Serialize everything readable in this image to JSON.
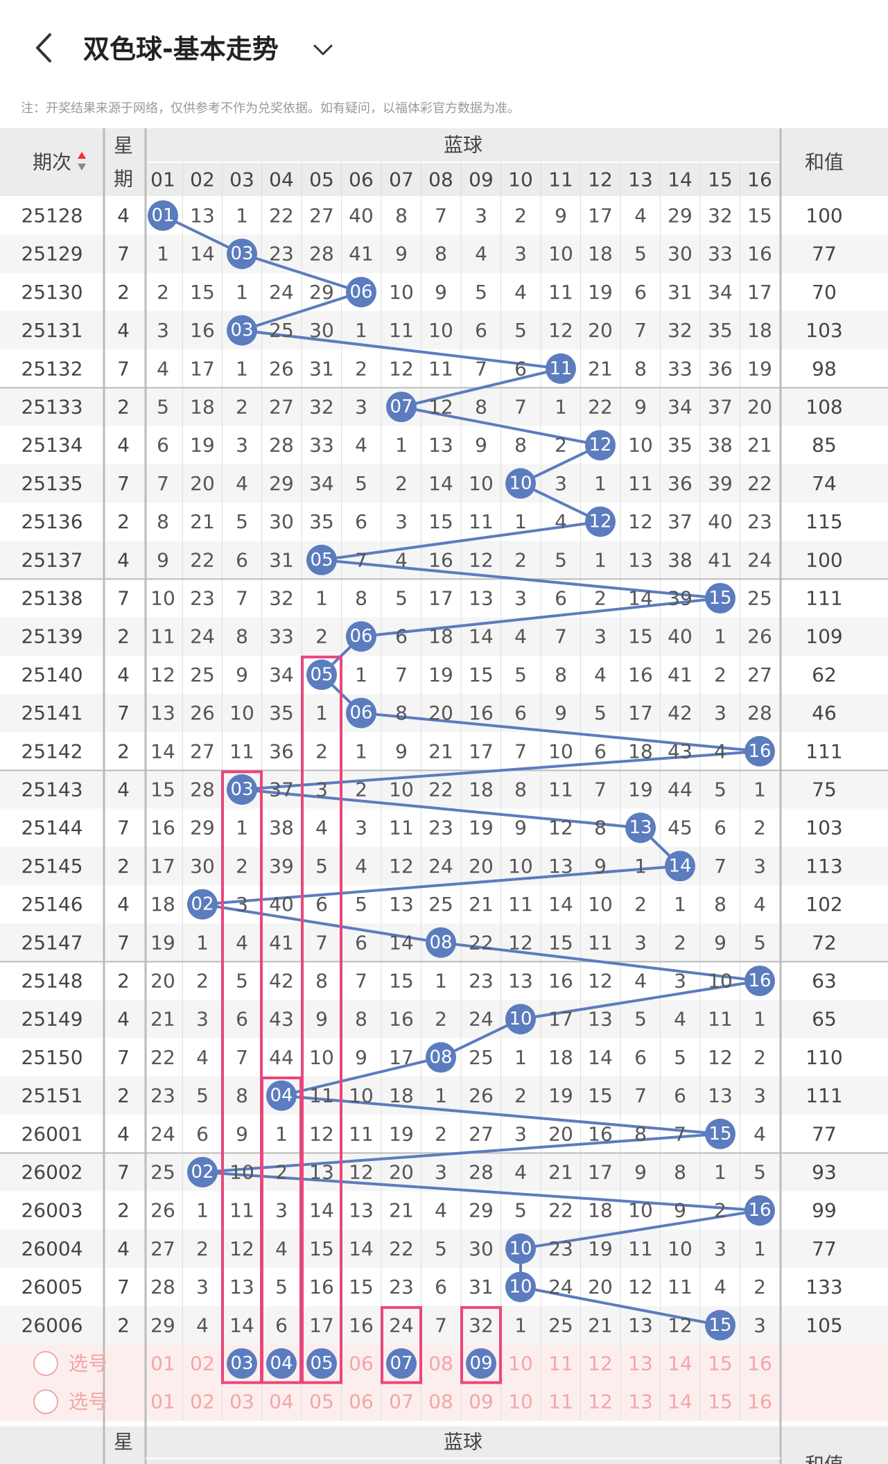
{
  "header": {
    "title": "双色球-基本走势"
  },
  "notice": "注：开奖结果来源于网络，仅供参考不作为兑奖依据。如有疑问，以福体彩官方数据为准。",
  "table": {
    "col_issue": "期次",
    "col_week": "星期",
    "col_blue": "蓝球",
    "col_sum": "和值",
    "numbers": [
      "01",
      "02",
      "03",
      "04",
      "05",
      "06",
      "07",
      "08",
      "09",
      "10",
      "11",
      "12",
      "13",
      "14",
      "15",
      "16"
    ],
    "rows": [
      {
        "issue": "25128",
        "week": "4",
        "hit": 1,
        "cells": [
          0,
          13,
          1,
          22,
          27,
          40,
          8,
          7,
          3,
          2,
          9,
          17,
          4,
          29,
          32,
          15
        ],
        "sum": "100"
      },
      {
        "issue": "25129",
        "week": "7",
        "hit": 3,
        "cells": [
          1,
          14,
          0,
          23,
          28,
          41,
          9,
          8,
          4,
          3,
          10,
          18,
          5,
          30,
          33,
          16
        ],
        "sum": "77"
      },
      {
        "issue": "25130",
        "week": "2",
        "hit": 6,
        "cells": [
          2,
          15,
          1,
          24,
          29,
          0,
          10,
          9,
          5,
          4,
          11,
          19,
          6,
          31,
          34,
          17
        ],
        "sum": "70"
      },
      {
        "issue": "25131",
        "week": "4",
        "hit": 3,
        "cells": [
          3,
          16,
          0,
          25,
          30,
          1,
          11,
          10,
          6,
          5,
          12,
          20,
          7,
          32,
          35,
          18
        ],
        "sum": "103"
      },
      {
        "issue": "25132",
        "week": "7",
        "hit": 11,
        "cells": [
          4,
          17,
          1,
          26,
          31,
          2,
          12,
          11,
          7,
          6,
          0,
          21,
          8,
          33,
          36,
          19
        ],
        "sum": "98"
      },
      {
        "issue": "25133",
        "week": "2",
        "hit": 7,
        "cells": [
          5,
          18,
          2,
          27,
          32,
          3,
          0,
          12,
          8,
          7,
          1,
          22,
          9,
          34,
          37,
          20
        ],
        "sum": "108"
      },
      {
        "issue": "25134",
        "week": "4",
        "hit": 12,
        "cells": [
          6,
          19,
          3,
          28,
          33,
          4,
          1,
          13,
          9,
          8,
          2,
          0,
          10,
          35,
          38,
          21
        ],
        "sum": "85"
      },
      {
        "issue": "25135",
        "week": "7",
        "hit": 10,
        "cells": [
          7,
          20,
          4,
          29,
          34,
          5,
          2,
          14,
          10,
          0,
          3,
          1,
          11,
          36,
          39,
          22
        ],
        "sum": "74"
      },
      {
        "issue": "25136",
        "week": "2",
        "hit": 12,
        "cells": [
          8,
          21,
          5,
          30,
          35,
          6,
          3,
          15,
          11,
          1,
          4,
          0,
          12,
          37,
          40,
          23
        ],
        "sum": "115"
      },
      {
        "issue": "25137",
        "week": "4",
        "hit": 5,
        "cells": [
          9,
          22,
          6,
          31,
          0,
          7,
          4,
          16,
          12,
          2,
          5,
          1,
          13,
          38,
          41,
          24
        ],
        "sum": "100"
      },
      {
        "issue": "25138",
        "week": "7",
        "hit": 15,
        "cells": [
          10,
          23,
          7,
          32,
          1,
          8,
          5,
          17,
          13,
          3,
          6,
          2,
          14,
          39,
          0,
          25
        ],
        "sum": "111"
      },
      {
        "issue": "25139",
        "week": "2",
        "hit": 6,
        "cells": [
          11,
          24,
          8,
          33,
          2,
          0,
          6,
          18,
          14,
          4,
          7,
          3,
          15,
          40,
          1,
          26
        ],
        "sum": "109"
      },
      {
        "issue": "25140",
        "week": "4",
        "hit": 5,
        "cells": [
          12,
          25,
          9,
          34,
          0,
          1,
          7,
          19,
          15,
          5,
          8,
          4,
          16,
          41,
          2,
          27
        ],
        "sum": "62"
      },
      {
        "issue": "25141",
        "week": "7",
        "hit": 6,
        "cells": [
          13,
          26,
          10,
          35,
          1,
          0,
          8,
          20,
          16,
          6,
          9,
          5,
          17,
          42,
          3,
          28
        ],
        "sum": "46"
      },
      {
        "issue": "25142",
        "week": "2",
        "hit": 16,
        "cells": [
          14,
          27,
          11,
          36,
          2,
          1,
          9,
          21,
          17,
          7,
          10,
          6,
          18,
          43,
          4,
          0
        ],
        "sum": "111"
      },
      {
        "issue": "25143",
        "week": "4",
        "hit": 3,
        "cells": [
          15,
          28,
          0,
          37,
          3,
          2,
          10,
          22,
          18,
          8,
          11,
          7,
          19,
          44,
          5,
          1
        ],
        "sum": "75"
      },
      {
        "issue": "25144",
        "week": "7",
        "hit": 13,
        "cells": [
          16,
          29,
          1,
          38,
          4,
          3,
          11,
          23,
          19,
          9,
          12,
          8,
          0,
          45,
          6,
          2
        ],
        "sum": "103"
      },
      {
        "issue": "25145",
        "week": "2",
        "hit": 14,
        "cells": [
          17,
          30,
          2,
          39,
          5,
          4,
          12,
          24,
          20,
          10,
          13,
          9,
          1,
          0,
          7,
          3
        ],
        "sum": "113"
      },
      {
        "issue": "25146",
        "week": "4",
        "hit": 2,
        "cells": [
          18,
          0,
          3,
          40,
          6,
          5,
          13,
          25,
          21,
          11,
          14,
          10,
          2,
          1,
          8,
          4
        ],
        "sum": "102"
      },
      {
        "issue": "25147",
        "week": "7",
        "hit": 8,
        "cells": [
          19,
          1,
          4,
          41,
          7,
          6,
          14,
          0,
          22,
          12,
          15,
          11,
          3,
          2,
          9,
          5
        ],
        "sum": "72"
      },
      {
        "issue": "25148",
        "week": "2",
        "hit": 16,
        "cells": [
          20,
          2,
          5,
          42,
          8,
          7,
          15,
          1,
          23,
          13,
          16,
          12,
          4,
          3,
          10,
          0
        ],
        "sum": "63"
      },
      {
        "issue": "25149",
        "week": "4",
        "hit": 10,
        "cells": [
          21,
          3,
          6,
          43,
          9,
          8,
          16,
          2,
          24,
          0,
          17,
          13,
          5,
          4,
          11,
          1
        ],
        "sum": "65"
      },
      {
        "issue": "25150",
        "week": "7",
        "hit": 8,
        "cells": [
          22,
          4,
          7,
          44,
          10,
          9,
          17,
          0,
          25,
          1,
          18,
          14,
          6,
          5,
          12,
          2
        ],
        "sum": "110"
      },
      {
        "issue": "25151",
        "week": "2",
        "hit": 4,
        "cells": [
          23,
          5,
          8,
          0,
          11,
          10,
          18,
          1,
          26,
          2,
          19,
          15,
          7,
          6,
          13,
          3
        ],
        "sum": "111"
      },
      {
        "issue": "26001",
        "week": "4",
        "hit": 15,
        "cells": [
          24,
          6,
          9,
          1,
          12,
          11,
          19,
          2,
          27,
          3,
          20,
          16,
          8,
          7,
          0,
          4
        ],
        "sum": "77"
      },
      {
        "issue": "26002",
        "week": "7",
        "hit": 2,
        "cells": [
          25,
          0,
          10,
          2,
          13,
          12,
          20,
          3,
          28,
          4,
          21,
          17,
          9,
          8,
          1,
          5
        ],
        "sum": "93"
      },
      {
        "issue": "26003",
        "week": "2",
        "hit": 16,
        "cells": [
          26,
          1,
          11,
          3,
          14,
          13,
          21,
          4,
          29,
          5,
          22,
          18,
          10,
          9,
          2,
          0
        ],
        "sum": "99"
      },
      {
        "issue": "26004",
        "week": "4",
        "hit": 10,
        "cells": [
          27,
          2,
          12,
          4,
          15,
          14,
          22,
          5,
          30,
          0,
          23,
          19,
          11,
          10,
          3,
          1
        ],
        "sum": "77"
      },
      {
        "issue": "26005",
        "week": "7",
        "hit": 10,
        "cells": [
          28,
          3,
          13,
          5,
          16,
          15,
          23,
          6,
          31,
          0,
          24,
          20,
          12,
          11,
          4,
          2
        ],
        "sum": "133"
      },
      {
        "issue": "26006",
        "week": "2",
        "hit": 15,
        "cells": [
          29,
          4,
          14,
          6,
          17,
          16,
          24,
          7,
          32,
          1,
          25,
          21,
          13,
          12,
          0,
          3
        ],
        "sum": "105"
      }
    ],
    "select_label": "选号",
    "selected_numbers": [
      "03",
      "04",
      "05",
      "07",
      "09"
    ],
    "bottom_issue": "-"
  },
  "colors": {
    "ball": "#5b7cbe",
    "line": "#5b7cbe",
    "box": "#e8467c",
    "select_text": "#f3a6a6",
    "select_bg": "#fdeeee",
    "header_bg": "#ececec",
    "row_alt": "#f5f5f5"
  }
}
